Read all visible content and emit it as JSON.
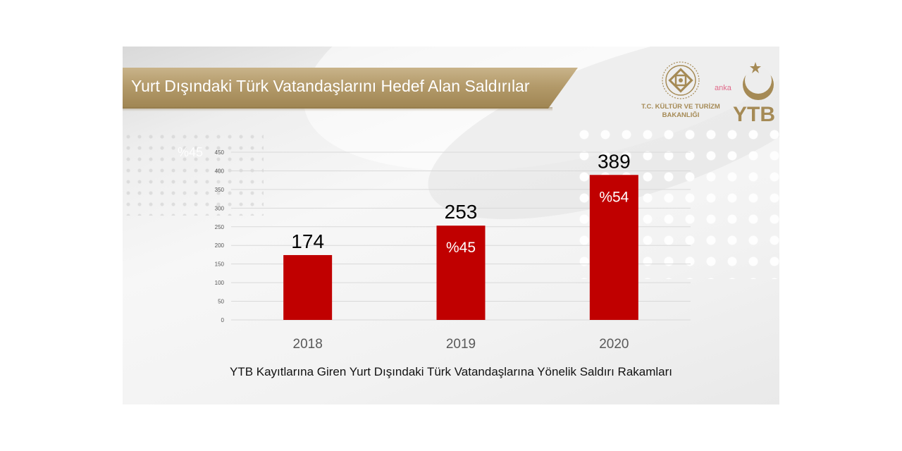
{
  "banner": {
    "title": "Yurt Dışındaki Türk Vatandaşlarını Hedef Alan Saldırılar"
  },
  "logos": {
    "ministry_line1": "T.C. KÜLTÜR VE TURİZM",
    "ministry_line2": "BAKANLIĞI",
    "ytb": "YTB",
    "overlay": "anka"
  },
  "watermark": "%45",
  "colors": {
    "bar": "#c00000",
    "banner": "#b39a6a",
    "gold": "#a58a55",
    "grid": "#d9d9d9"
  },
  "chart_data": {
    "type": "bar",
    "title": "",
    "subtitle": "YTB Kayıtlarına Giren Yurt Dışındaki Türk Vatandaşlarına Yönelik Saldırı Rakamları",
    "xlabel": "",
    "ylabel": "",
    "categories": [
      "2018",
      "2019",
      "2020"
    ],
    "values": [
      174,
      253,
      389
    ],
    "value_labels": [
      "174",
      "253",
      "389"
    ],
    "bar_annotations": [
      "",
      "%45",
      "%54"
    ],
    "yticks": [
      "0",
      "50",
      "100",
      "150",
      "200",
      "250",
      "300",
      "350",
      "400",
      "450"
    ],
    "ylim": [
      0,
      450
    ],
    "grid": true,
    "legend": "none"
  }
}
